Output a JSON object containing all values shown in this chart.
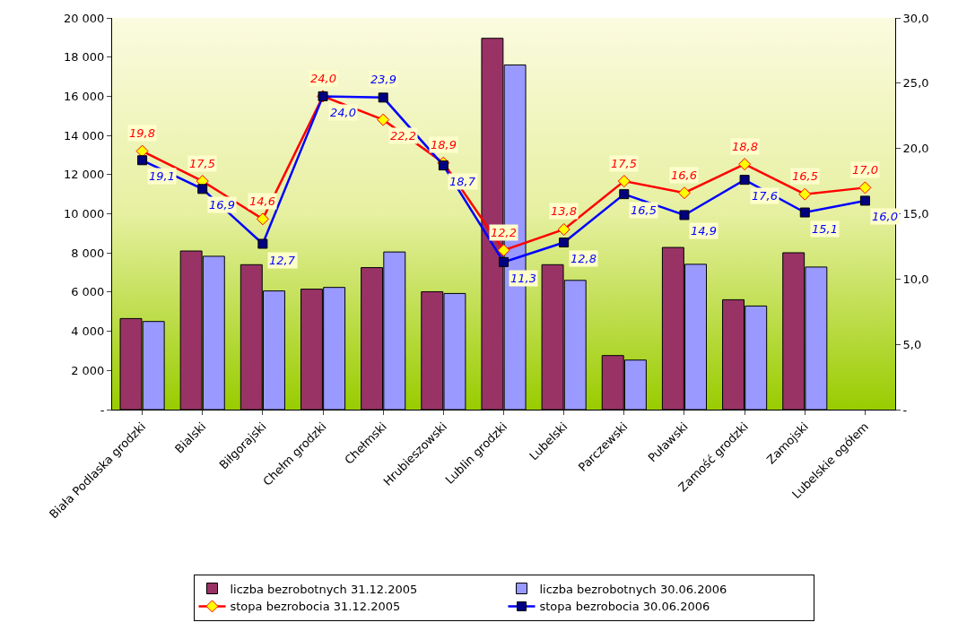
{
  "chart_data": {
    "type": "bar",
    "categories": [
      "Biała Podlaska grodzki",
      "Bialski",
      "Biłgorajski",
      "Chełm grodzki",
      "Chełmski",
      "Hrubieszowski",
      "Lublin grodzki",
      "Lubelski",
      "Parczewski",
      "Puławski",
      "Zamość grodzki",
      "Zamojski",
      "Lubelskie ogółem"
    ],
    "series": [
      {
        "name": "liczba bezrobotnych 31.12.2005",
        "type": "bar",
        "color": "#993366",
        "values": [
          4650,
          8100,
          7400,
          6150,
          7250,
          6020,
          18960,
          7400,
          2760,
          8280,
          5610,
          8010,
          null
        ]
      },
      {
        "name": "liczba bezrobotnych 30.06.2006",
        "type": "bar",
        "color": "#9999ff",
        "values": [
          4500,
          7830,
          6060,
          6240,
          8050,
          5930,
          17600,
          6600,
          2530,
          7420,
          5290,
          7280,
          null
        ]
      },
      {
        "name": "stopa bezrobocia 31.12.2005",
        "type": "line",
        "axis": "y2",
        "marker": "diamond",
        "color": "#ff0000",
        "values": [
          19.8,
          17.5,
          14.6,
          24.0,
          22.2,
          18.9,
          12.2,
          13.8,
          17.5,
          16.6,
          18.8,
          16.5,
          17.0
        ],
        "value_labels": [
          "19,8",
          "17,5",
          "14,6",
          "24,0",
          "22,2",
          "18,9",
          "12,2",
          "13,8",
          "17,5",
          "16,6",
          "18,8",
          "16,5",
          "17,0"
        ]
      },
      {
        "name": "stopa bezrobocia 30.06.2006",
        "type": "line",
        "axis": "y2",
        "marker": "square",
        "color": "#0000ff",
        "values": [
          19.1,
          16.9,
          12.7,
          24.0,
          23.9,
          18.7,
          11.3,
          12.8,
          16.5,
          14.9,
          17.6,
          15.1,
          16.0
        ],
        "value_labels": [
          "19,1",
          "16,9",
          "12,7",
          "24,0",
          "23,9",
          "18,7",
          "11,3",
          "12,8",
          "16,5",
          "14,9",
          "17,6",
          "15,1",
          "16,0"
        ]
      }
    ],
    "ylim": [
      0,
      20000
    ],
    "yticks": [
      {
        "value": 0,
        "label": "-"
      },
      {
        "value": 2000,
        "label": "2 000"
      },
      {
        "value": 4000,
        "label": "4 000"
      },
      {
        "value": 6000,
        "label": "6 000"
      },
      {
        "value": 8000,
        "label": "8 000"
      },
      {
        "value": 10000,
        "label": "10 000"
      },
      {
        "value": 12000,
        "label": "12 000"
      },
      {
        "value": 14000,
        "label": "14 000"
      },
      {
        "value": 16000,
        "label": "16 000"
      },
      {
        "value": 18000,
        "label": "18 000"
      },
      {
        "value": 20000,
        "label": "20 000"
      }
    ],
    "y2lim": [
      0,
      30
    ],
    "y2ticks": [
      {
        "value": 0,
        "label": "-"
      },
      {
        "value": 5,
        "label": "5,0"
      },
      {
        "value": 10,
        "label": "10,0"
      },
      {
        "value": 15,
        "label": "15,0"
      },
      {
        "value": 20,
        "label": "20,0"
      },
      {
        "value": 25,
        "label": "25,0"
      },
      {
        "value": 30,
        "label": "30,0"
      }
    ],
    "grid": false,
    "legend": "bottom",
    "line_style": "solid"
  }
}
